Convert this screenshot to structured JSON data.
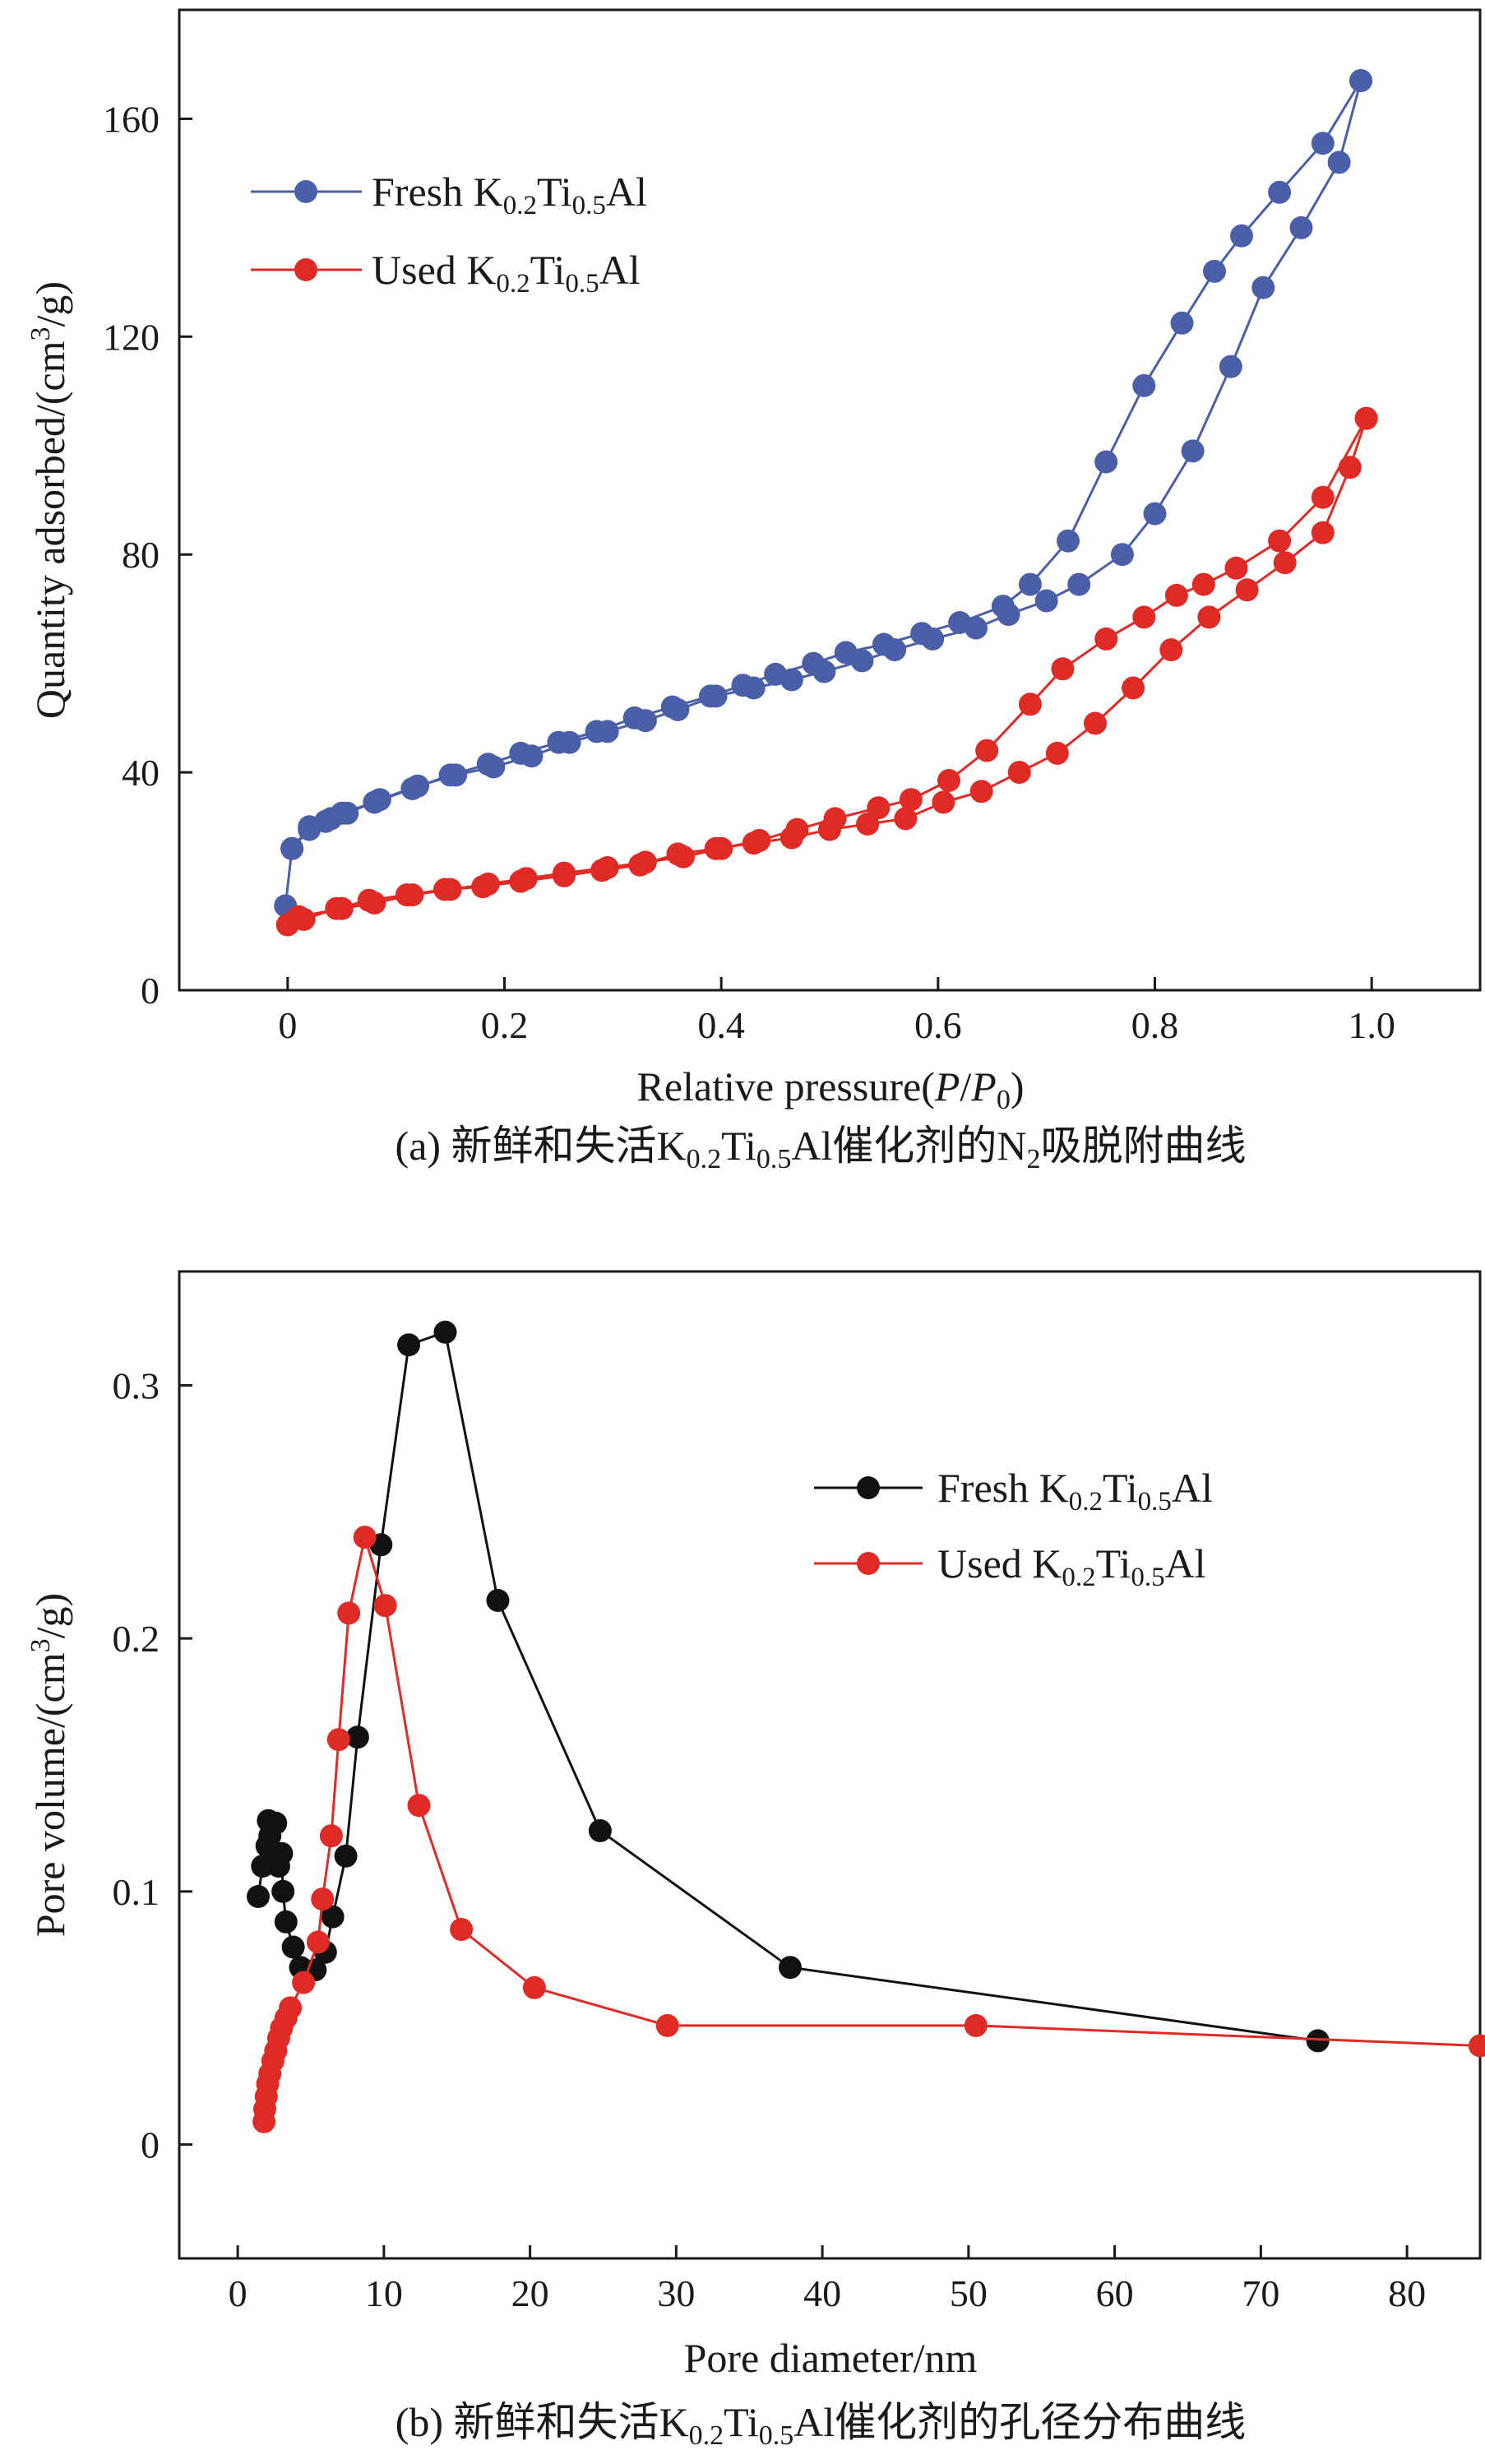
{
  "chart_data": [
    {
      "type": "line",
      "panel": "a",
      "caption": {
        "prefix": "(a) 新鲜和失活K",
        "s1": "0.2",
        "m1": "Ti",
        "s2": "0.5",
        "m2": "Al催化剂的N",
        "s3": "2",
        "suffix": "吸脱附曲线"
      },
      "xlabel": {
        "pre": "Relative pressure(",
        "P": "P",
        "slash": "/",
        "P0": "P",
        "sub": "0",
        "post": ")"
      },
      "ylabel": {
        "pre": "Quantity adsorbed/(cm",
        "sup": "3",
        "post": "/g)"
      },
      "xlim": [
        -0.1,
        1.1
      ],
      "ylim": [
        0,
        180
      ],
      "xticks": [
        0,
        0.2,
        0.4,
        0.6,
        0.8,
        1.0
      ],
      "xtick_labels": [
        "0",
        "0.2",
        "0.4",
        "0.6",
        "0.8",
        "1.0"
      ],
      "yticks": [
        0,
        40,
        80,
        120,
        160
      ],
      "ytick_labels": [
        "0",
        "40",
        "80",
        "120",
        "160"
      ],
      "legend_position": "top-left",
      "series": [
        {
          "name": "Fresh K0.2Ti0.5Al",
          "legend": {
            "pre": "Fresh K",
            "s1": "0.2",
            "m": "Ti",
            "s2": "0.5",
            "post": "Al"
          },
          "color": "#4a5fa8",
          "adsorption": [
            [
              -0.002,
              15.5
            ],
            [
              0.004,
              26
            ],
            [
              0.02,
              29.5
            ],
            [
              0.035,
              31
            ],
            [
              0.05,
              32.5
            ],
            [
              0.08,
              34.5
            ],
            [
              0.115,
              37
            ],
            [
              0.15,
              39.5
            ],
            [
              0.185,
              41.5
            ],
            [
              0.215,
              43.5
            ],
            [
              0.25,
              45.5
            ],
            [
              0.285,
              47.5
            ],
            [
              0.32,
              50
            ],
            [
              0.355,
              52
            ],
            [
              0.39,
              54
            ],
            [
              0.42,
              56
            ],
            [
              0.45,
              58
            ],
            [
              0.485,
              60
            ],
            [
              0.515,
              62
            ],
            [
              0.55,
              63.5
            ],
            [
              0.585,
              65.5
            ],
            [
              0.62,
              67.5
            ],
            [
              0.66,
              70.5
            ],
            [
              0.685,
              74.5
            ],
            [
              0.72,
              82.5
            ],
            [
              0.755,
              97
            ],
            [
              0.79,
              111
            ],
            [
              0.825,
              122.5
            ],
            [
              0.855,
              132
            ],
            [
              0.88,
              138.5
            ],
            [
              0.915,
              146.5
            ],
            [
              0.955,
              155.5
            ],
            [
              0.99,
              167
            ]
          ],
          "desorption": [
            [
              0.99,
              167
            ],
            [
              0.97,
              152
            ],
            [
              0.935,
              140
            ],
            [
              0.9,
              129
            ],
            [
              0.87,
              114.5
            ],
            [
              0.835,
              99
            ],
            [
              0.8,
              87.5
            ],
            [
              0.77,
              80
            ],
            [
              0.73,
              74.5
            ],
            [
              0.7,
              71.5
            ],
            [
              0.665,
              69
            ],
            [
              0.635,
              66.5
            ],
            [
              0.595,
              64.5
            ],
            [
              0.56,
              62.5
            ],
            [
              0.53,
              60.5
            ],
            [
              0.495,
              58.5
            ],
            [
              0.465,
              57
            ],
            [
              0.43,
              55.5
            ],
            [
              0.395,
              54
            ],
            [
              0.36,
              51.5
            ],
            [
              0.33,
              49.5
            ],
            [
              0.295,
              47.5
            ],
            [
              0.26,
              45.5
            ],
            [
              0.225,
              43
            ],
            [
              0.19,
              41
            ],
            [
              0.155,
              39.5
            ],
            [
              0.12,
              37.5
            ],
            [
              0.085,
              35
            ],
            [
              0.055,
              32.5
            ],
            [
              0.04,
              31.5
            ],
            [
              0.02,
              30
            ],
            [
              0.004,
              26
            ]
          ]
        },
        {
          "name": "Used K0.2Ti0.5Al",
          "legend": {
            "pre": "Used K",
            "s1": "0.2",
            "m": "Ti",
            "s2": "0.5",
            "post": "Al"
          },
          "color": "#e02a25",
          "adsorption": [
            [
              0.0,
              12
            ],
            [
              0.01,
              13.5
            ],
            [
              0.05,
              15
            ],
            [
              0.08,
              16
            ],
            [
              0.115,
              17.5
            ],
            [
              0.15,
              18.5
            ],
            [
              0.185,
              19.5
            ],
            [
              0.22,
              20.5
            ],
            [
              0.255,
              21.5
            ],
            [
              0.295,
              22.5
            ],
            [
              0.33,
              23.5
            ],
            [
              0.365,
              24.5
            ],
            [
              0.4,
              26
            ],
            [
              0.435,
              27.5
            ],
            [
              0.47,
              29.5
            ],
            [
              0.505,
              31.5
            ],
            [
              0.545,
              33.5
            ],
            [
              0.575,
              35
            ],
            [
              0.61,
              38.5
            ],
            [
              0.645,
              44
            ],
            [
              0.685,
              52.5
            ],
            [
              0.715,
              59
            ],
            [
              0.755,
              64.5
            ],
            [
              0.79,
              68.5
            ],
            [
              0.82,
              72.5
            ],
            [
              0.845,
              74.5
            ],
            [
              0.875,
              77.5
            ],
            [
              0.915,
              82.5
            ],
            [
              0.955,
              90.5
            ],
            [
              0.995,
              105
            ]
          ],
          "desorption": [
            [
              0.995,
              105
            ],
            [
              0.98,
              96
            ],
            [
              0.955,
              84
            ],
            [
              0.92,
              78.5
            ],
            [
              0.885,
              73.5
            ],
            [
              0.85,
              68.5
            ],
            [
              0.815,
              62.5
            ],
            [
              0.78,
              55.5
            ],
            [
              0.745,
              49
            ],
            [
              0.71,
              43.5
            ],
            [
              0.675,
              40
            ],
            [
              0.64,
              36.5
            ],
            [
              0.605,
              34.5
            ],
            [
              0.57,
              31.5
            ],
            [
              0.535,
              30.5
            ],
            [
              0.5,
              29.5
            ],
            [
              0.465,
              28
            ],
            [
              0.43,
              27
            ],
            [
              0.395,
              26
            ],
            [
              0.36,
              25
            ],
            [
              0.325,
              23
            ],
            [
              0.29,
              22
            ],
            [
              0.255,
              21
            ],
            [
              0.215,
              20
            ],
            [
              0.18,
              19
            ],
            [
              0.145,
              18.5
            ],
            [
              0.11,
              17.5
            ],
            [
              0.075,
              16.5
            ],
            [
              0.045,
              15
            ],
            [
              0.015,
              13
            ],
            [
              0.0,
              12
            ]
          ]
        }
      ]
    },
    {
      "type": "line",
      "panel": "b",
      "caption": {
        "prefix": "(b) 新鲜和失活K",
        "s1": "0.2",
        "m1": "Ti",
        "s2": "0.5",
        "suffix": "Al催化剂的孔径分布曲线"
      },
      "xlabel": {
        "text": "Pore diameter/nm"
      },
      "ylabel": {
        "pre": "Pore volume/(cm",
        "sup": "3",
        "post": "/g)"
      },
      "xlim": [
        -4,
        85
      ],
      "ylim": [
        -0.045,
        0.345
      ],
      "xticks": [
        0,
        10,
        20,
        30,
        40,
        50,
        60,
        70,
        80
      ],
      "xtick_labels": [
        "0",
        "10",
        "20",
        "30",
        "40",
        "50",
        "60",
        "70",
        "80"
      ],
      "yticks": [
        0,
        0.1,
        0.2,
        0.3
      ],
      "ytick_labels": [
        "0",
        "0.1",
        "0.2",
        "0.3"
      ],
      "legend_position": "top-right",
      "series": [
        {
          "name": "Fresh K0.2Ti0.5Al",
          "legend": {
            "pre": "Fresh K",
            "s1": "0.2",
            "m": "Ti",
            "s2": "0.5",
            "post": "Al"
          },
          "color": "#111111",
          "points": [
            [
              1.4,
              0.098
            ],
            [
              1.7,
              0.11
            ],
            [
              2.0,
              0.118
            ],
            [
              2.1,
              0.128
            ],
            [
              2.2,
              0.122
            ],
            [
              2.4,
              0.115
            ],
            [
              2.6,
              0.127
            ],
            [
              2.8,
              0.11
            ],
            [
              3.0,
              0.115
            ],
            [
              3.1,
              0.1
            ],
            [
              3.3,
              0.088
            ],
            [
              3.8,
              0.078
            ],
            [
              4.3,
              0.07
            ],
            [
              5.3,
              0.069
            ],
            [
              6.0,
              0.076
            ],
            [
              6.5,
              0.09
            ],
            [
              7.4,
              0.114
            ],
            [
              8.2,
              0.161
            ],
            [
              9.8,
              0.237
            ],
            [
              11.7,
              0.316
            ],
            [
              14.2,
              0.321
            ],
            [
              17.8,
              0.215
            ],
            [
              24.8,
              0.124
            ],
            [
              37.8,
              0.07
            ],
            [
              73.9,
              0.041
            ]
          ]
        },
        {
          "name": "Used K0.2Ti0.5Al",
          "legend": {
            "pre": "Used K",
            "s1": "0.2",
            "m": "Ti",
            "s2": "0.5",
            "post": "Al"
          },
          "color": "#e02a25",
          "points": [
            [
              1.8,
              0.009
            ],
            [
              1.85,
              0.014
            ],
            [
              1.95,
              0.019
            ],
            [
              2.05,
              0.024
            ],
            [
              2.2,
              0.028
            ],
            [
              2.4,
              0.033
            ],
            [
              2.6,
              0.037
            ],
            [
              2.8,
              0.042
            ],
            [
              3.0,
              0.046
            ],
            [
              3.3,
              0.05
            ],
            [
              3.6,
              0.054
            ],
            [
              4.5,
              0.064
            ],
            [
              5.5,
              0.08
            ],
            [
              5.8,
              0.097
            ],
            [
              6.4,
              0.122
            ],
            [
              6.9,
              0.16
            ],
            [
              7.6,
              0.21
            ],
            [
              8.7,
              0.24
            ],
            [
              10.1,
              0.213
            ],
            [
              12.4,
              0.134
            ],
            [
              15.3,
              0.085
            ],
            [
              20.3,
              0.062
            ],
            [
              29.4,
              0.047
            ],
            [
              50.5,
              0.047
            ],
            [
              85,
              0.039
            ]
          ]
        }
      ]
    }
  ]
}
